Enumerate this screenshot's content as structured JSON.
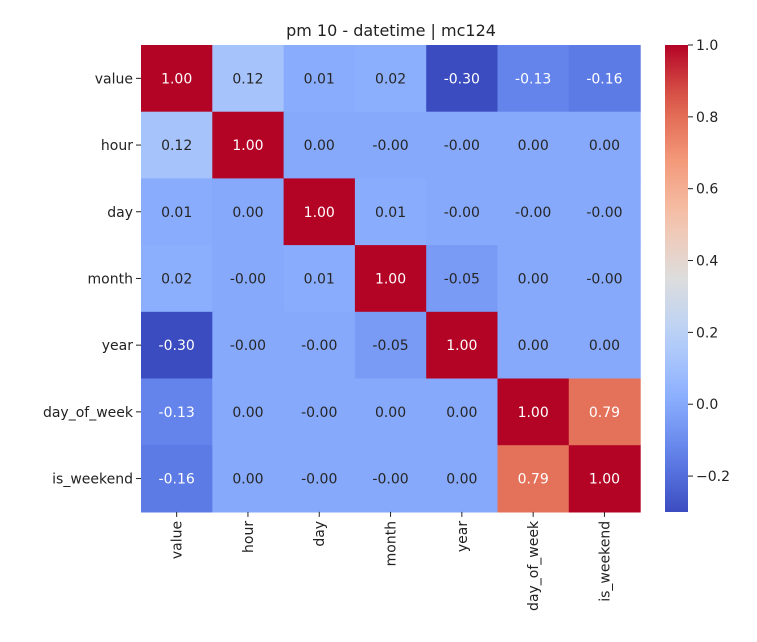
{
  "chart_data": {
    "type": "heatmap",
    "title": "pm 10 - datetime | mc124",
    "xlabel": "",
    "ylabel": "",
    "rows": [
      "value",
      "hour",
      "day",
      "month",
      "year",
      "day_of_week",
      "is_weekend"
    ],
    "columns": [
      "value",
      "hour",
      "day",
      "month",
      "year",
      "day_of_week",
      "is_weekend"
    ],
    "values": [
      [
        1.0,
        0.12,
        0.01,
        0.02,
        -0.3,
        -0.13,
        -0.16
      ],
      [
        0.12,
        1.0,
        0.0,
        -0.0,
        -0.0,
        0.0,
        0.0
      ],
      [
        0.01,
        0.0,
        1.0,
        0.01,
        -0.0,
        -0.0,
        -0.0
      ],
      [
        0.02,
        -0.0,
        0.01,
        1.0,
        -0.05,
        0.0,
        -0.0
      ],
      [
        -0.3,
        -0.0,
        -0.0,
        -0.05,
        1.0,
        0.0,
        0.0
      ],
      [
        -0.13,
        0.0,
        -0.0,
        0.0,
        0.0,
        1.0,
        0.79
      ],
      [
        -0.16,
        0.0,
        -0.0,
        -0.0,
        0.0,
        0.79,
        1.0
      ]
    ],
    "cell_labels": [
      [
        "1.00",
        "0.12",
        "0.01",
        "0.02",
        "-0.30",
        "-0.13",
        "-0.16"
      ],
      [
        "0.12",
        "1.00",
        "0.00",
        "-0.00",
        "-0.00",
        "0.00",
        "0.00"
      ],
      [
        "0.01",
        "0.00",
        "1.00",
        "0.01",
        "-0.00",
        "-0.00",
        "-0.00"
      ],
      [
        "0.02",
        "-0.00",
        "0.01",
        "1.00",
        "-0.05",
        "0.00",
        "-0.00"
      ],
      [
        "-0.30",
        "-0.00",
        "-0.00",
        "-0.05",
        "1.00",
        "0.00",
        "0.00"
      ],
      [
        "-0.13",
        "0.00",
        "-0.00",
        "0.00",
        "0.00",
        "1.00",
        "0.79"
      ],
      [
        "-0.16",
        "0.00",
        "-0.00",
        "-0.00",
        "0.00",
        "0.79",
        "1.00"
      ]
    ],
    "colormap": "coolwarm",
    "vmin": -0.3,
    "vmax": 1.0,
    "colorbar": {
      "position": "right",
      "ticks": [
        1.0,
        0.8,
        0.6,
        0.4,
        0.2,
        0.0,
        -0.2
      ],
      "tick_labels": [
        "1.0",
        "0.8",
        "0.6",
        "0.4",
        "0.2",
        "0.0",
        "−0.2"
      ]
    },
    "grid": false
  }
}
